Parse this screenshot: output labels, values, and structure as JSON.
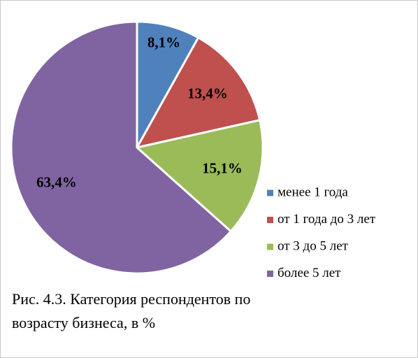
{
  "chart_data": {
    "type": "pie",
    "title": "Рис. 4.3. Категория респондентов по возрасту бизнеса, в %",
    "categories": [
      "менее 1 года",
      "от 1 года до 3 лет",
      "от 3 до 5 лет",
      "более 5 лет"
    ],
    "values": [
      8.1,
      13.4,
      15.1,
      63.4
    ],
    "value_labels": [
      "8,1%",
      "13,4%",
      "15,1%",
      "63,4%"
    ],
    "colors": [
      "#4f81bd",
      "#c0504d",
      "#9bbb59",
      "#8064a2"
    ],
    "legend": "right"
  }
}
